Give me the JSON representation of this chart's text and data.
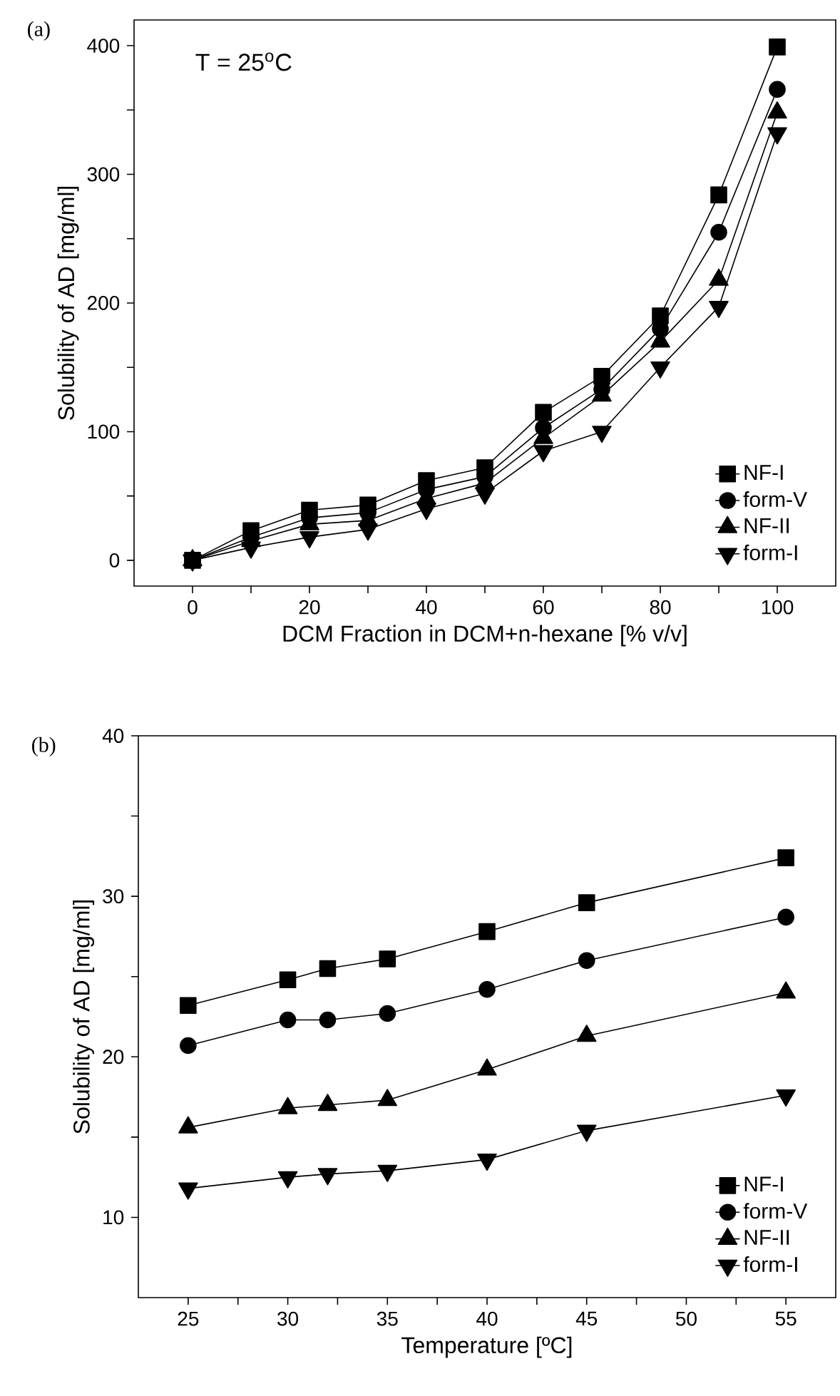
{
  "chart_data": [
    {
      "type": "line",
      "xlabel": "DCM Fraction in DCM+n-hexane [% v/v]",
      "ylabel": "Solubility of AD [mg/ml]",
      "annotations": [
        "(a)",
        "T = 25$^{o}$C"
      ],
      "x": [
        0,
        10,
        20,
        30,
        40,
        50,
        60,
        70,
        80,
        90,
        100
      ],
      "series": [
        {
          "name": "NF-I",
          "color": "#000000",
          "marker": "square",
          "values": [
            0,
            23,
            39,
            43,
            62,
            72,
            115,
            143,
            190,
            284,
            399
          ]
        },
        {
          "name": "form-V",
          "color": "#000000",
          "marker": "circle",
          "values": [
            0,
            18,
            33,
            37,
            55,
            65,
            103,
            133,
            180,
            255,
            366
          ]
        },
        {
          "name": "NF-II",
          "color": "#000000",
          "marker": "triangle",
          "values": [
            0,
            15,
            28,
            31,
            48,
            60,
            95,
            128,
            170,
            218,
            348
          ]
        },
        {
          "name": "form-I",
          "color": "#000000",
          "marker": "triangle-down",
          "values": [
            0,
            10,
            18,
            24,
            40,
            52,
            85,
            100,
            150,
            197,
            332
          ]
        }
      ],
      "xlim": [
        -10,
        110
      ],
      "ylim": [
        -20,
        420
      ],
      "xticks": [
        0,
        {
          "value": 10,
          "label": null
        },
        20,
        {
          "value": 30,
          "label": null
        },
        40,
        {
          "value": 50,
          "label": null
        },
        60,
        {
          "value": 70,
          "label": null
        },
        80,
        {
          "value": 90,
          "label": null
        },
        100
      ],
      "yticks": [
        0,
        {
          "value": 50,
          "label": null
        },
        100,
        {
          "value": 150,
          "label": null
        },
        200,
        {
          "value": 250,
          "label": null
        },
        300,
        {
          "value": 350,
          "label": null
        },
        400
      ],
      "legend": "bottom right",
      "grid": false,
      "line_style": "solid"
    },
    {
      "type": "line",
      "xlabel": "Temperature [ºC]",
      "ylabel": "Solubility of AD [mg/ml]",
      "annotations": [
        "(b)"
      ],
      "x": [
        25,
        30,
        32,
        35,
        40,
        45,
        55
      ],
      "series": [
        {
          "name": "NF-I",
          "color": "#000000",
          "marker": "square",
          "values": [
            23.2,
            24.8,
            25.5,
            26.1,
            27.8,
            29.6,
            32.4
          ]
        },
        {
          "name": "form-V",
          "color": "#000000",
          "marker": "circle",
          "values": [
            20.7,
            22.3,
            22.3,
            22.7,
            24.2,
            26.0,
            28.7
          ]
        },
        {
          "name": "NF-II",
          "color": "#000000",
          "marker": "triangle",
          "values": [
            15.6,
            16.8,
            17.0,
            17.3,
            19.2,
            21.3,
            24.0
          ]
        },
        {
          "name": "form-I",
          "color": "#000000",
          "marker": "triangle-down",
          "values": [
            11.8,
            12.5,
            12.7,
            12.9,
            13.6,
            15.4,
            17.6
          ]
        }
      ],
      "xlim": [
        22.5,
        57.5
      ],
      "ylim": [
        5,
        40
      ],
      "xticks": [
        25,
        {
          "value": 27.5,
          "label": null
        },
        30,
        {
          "value": 32.5,
          "label": null
        },
        35,
        {
          "value": 37.5,
          "label": null
        },
        40,
        {
          "value": 42.5,
          "label": null
        },
        45,
        {
          "value": 47.5,
          "label": null
        },
        50,
        {
          "value": 52.5,
          "label": null
        },
        55
      ],
      "yticks": [
        10,
        {
          "value": 15,
          "label": null
        },
        20,
        {
          "value": 25,
          "label": null
        },
        30,
        {
          "value": 35,
          "label": null
        },
        40
      ],
      "legend": "bottom right",
      "grid": false,
      "line_style": "solid"
    }
  ]
}
